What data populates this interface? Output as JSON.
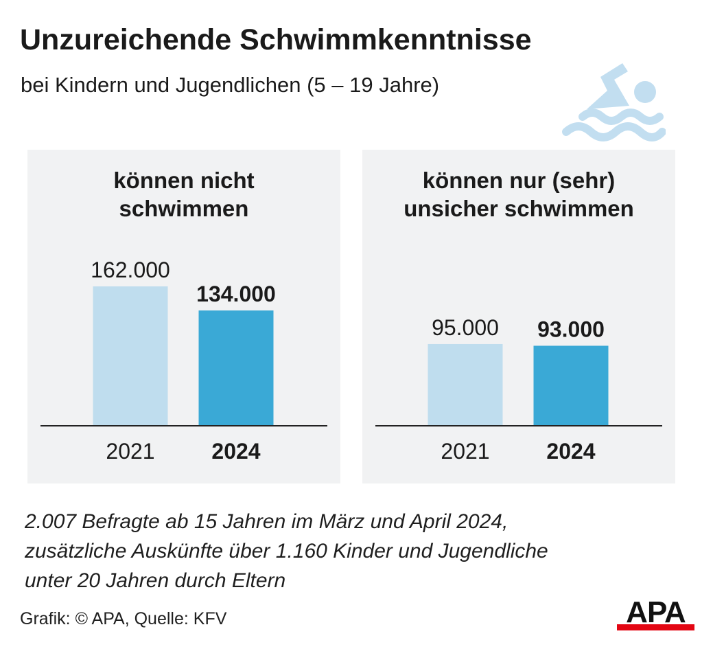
{
  "header": {
    "title": "Unzureichende Schwimmkenntnisse",
    "subtitle": "bei Kindern und Jugendlichen (5 – 19 Jahre)",
    "icon": "swimmer-icon"
  },
  "footer": {
    "note": "2.007 Befragte ab 15 Jahren im März und April 2024,\nzusätzliche Auskünfte über 1.160 Kinder und Jugendliche\nunter 20 Jahren durch Eltern",
    "credit": "Grafik: © APA, Quelle: KFV",
    "logo": "APA"
  },
  "colors": {
    "light": "#bfddee",
    "accent": "#3aa9d6",
    "panel": "#f1f2f3",
    "axis": "#222222",
    "logo_red": "#e30613",
    "icon": "#c2def0"
  },
  "chart_data": [
    {
      "type": "bar",
      "title": "können nicht\nschwimmen",
      "categories": [
        "2021",
        "2024"
      ],
      "values": [
        162000,
        134000
      ],
      "value_labels": [
        "162.000",
        "134.000"
      ],
      "highlight": [
        false,
        true
      ],
      "ylim": [
        0,
        162000
      ]
    },
    {
      "type": "bar",
      "title": "können nur (sehr)\nunsicher schwimmen",
      "categories": [
        "2021",
        "2024"
      ],
      "values": [
        95000,
        93000
      ],
      "value_labels": [
        "95.000",
        "93.000"
      ],
      "highlight": [
        false,
        true
      ],
      "ylim": [
        0,
        162000
      ]
    }
  ]
}
